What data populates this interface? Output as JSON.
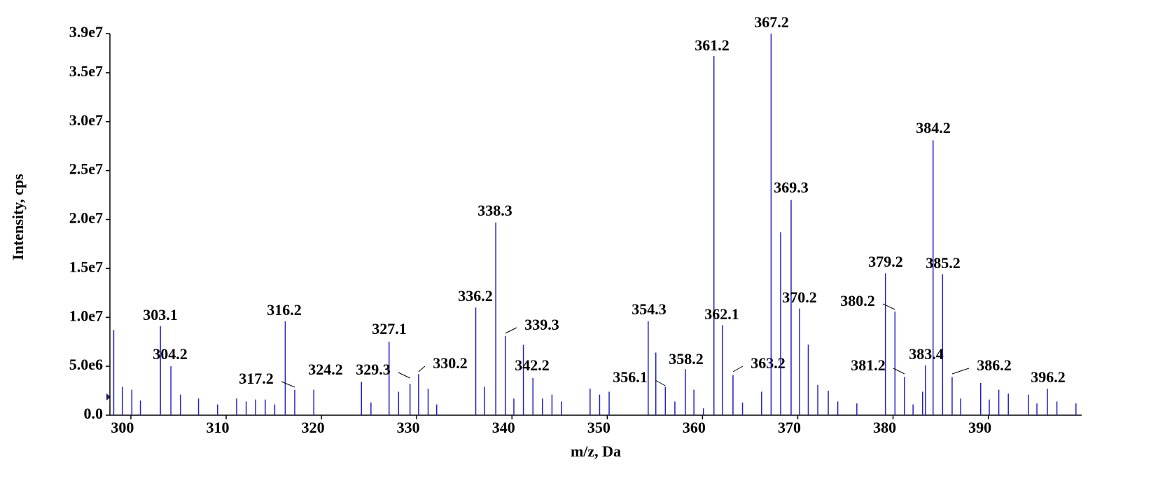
{
  "chart_data": {
    "type": "stem",
    "x_label": "m/z, Da",
    "y_label": "Intensity, cps",
    "color": "#2020c8",
    "x": [
      298.2,
      299.1,
      300.1,
      301.0,
      303.1,
      304.2,
      305.2,
      307.1,
      309.1,
      311.1,
      312.1,
      313.1,
      314.1,
      315.1,
      316.2,
      317.2,
      319.2,
      324.2,
      325.2,
      327.1,
      328.1,
      329.3,
      330.2,
      331.2,
      332.1,
      336.2,
      337.1,
      338.3,
      339.3,
      340.2,
      341.2,
      342.2,
      343.2,
      344.2,
      345.2,
      348.2,
      349.2,
      350.2,
      354.3,
      355.1,
      356.1,
      357.1,
      358.2,
      359.1,
      360.1,
      361.2,
      362.1,
      363.2,
      364.2,
      366.2,
      367.2,
      368.2,
      369.3,
      370.2,
      371.1,
      372.1,
      373.2,
      374.2,
      376.2,
      379.2,
      380.2,
      381.2,
      382.1,
      383.1,
      383.4,
      384.2,
      385.2,
      386.2,
      387.1,
      389.2,
      390.1,
      391.1,
      392.1,
      394.2,
      395.1,
      396.2,
      397.2,
      399.2
    ],
    "values": [
      8700000,
      2900000,
      2600000,
      1500000,
      9100000,
      5000000,
      2100000,
      1700000,
      1100000,
      1700000,
      1400000,
      1600000,
      1600000,
      1100000,
      9600000,
      2600000,
      2600000,
      3400000,
      1300000,
      7500000,
      2400000,
      3200000,
      4200000,
      2700000,
      1100000,
      11000000,
      2900000,
      19700000,
      8100000,
      1700000,
      7200000,
      3800000,
      1700000,
      2100000,
      1400000,
      2700000,
      2100000,
      2400000,
      9600000,
      6400000,
      2900000,
      1400000,
      4700000,
      2600000,
      700000,
      36700000,
      9200000,
      4100000,
      1300000,
      2400000,
      39000000,
      18700000,
      22000000,
      10900000,
      7200000,
      3100000,
      2500000,
      1400000,
      1200000,
      14500000,
      10600000,
      3900000,
      1100000,
      2400000,
      5100000,
      28100000,
      14400000,
      3900000,
      1700000,
      3300000,
      1600000,
      2600000,
      2200000,
      2100000,
      1200000,
      2700000,
      1400000,
      1200000
    ],
    "peak_labels": [
      null,
      null,
      null,
      null,
      "303.1",
      "304.2",
      null,
      null,
      null,
      null,
      null,
      null,
      null,
      null,
      "316.2",
      "317.2",
      null,
      "324.2",
      null,
      "327.1",
      null,
      "329.3",
      "330.2",
      null,
      null,
      "336.2",
      null,
      "338.3",
      "339.3",
      null,
      null,
      "342.2",
      null,
      null,
      null,
      null,
      null,
      null,
      "354.3",
      null,
      "356.1",
      null,
      "358.2",
      null,
      null,
      "361.2",
      "362.1",
      "363.2",
      null,
      null,
      "367.2",
      null,
      "369.3",
      "370.2",
      null,
      null,
      null,
      null,
      null,
      "379.2",
      "380.2",
      "381.2",
      null,
      null,
      "383.4",
      "384.2",
      "385.2",
      "386.2",
      null,
      null,
      null,
      null,
      null,
      null,
      null,
      "396.2",
      null,
      null
    ],
    "xlim": [
      297.8,
      399.8
    ],
    "ylim": [
      0,
      39000000
    ],
    "xticks": [
      300,
      310,
      320,
      330,
      340,
      350,
      360,
      370,
      380,
      390
    ],
    "yticks": [
      {
        "value": 0,
        "label": "0.0"
      },
      {
        "value": 5000000,
        "label": "5.0e6"
      },
      {
        "value": 10000000,
        "label": "1.0e7"
      },
      {
        "value": 15000000,
        "label": "1.5e7"
      },
      {
        "value": 20000000,
        "label": "2.0e7"
      },
      {
        "value": 25000000,
        "label": "2.5e7"
      },
      {
        "value": 30000000,
        "label": "3.0e7"
      },
      {
        "value": 35000000,
        "label": "3.5e7"
      },
      {
        "value": 39000000,
        "label": "3.9e7"
      }
    ]
  }
}
